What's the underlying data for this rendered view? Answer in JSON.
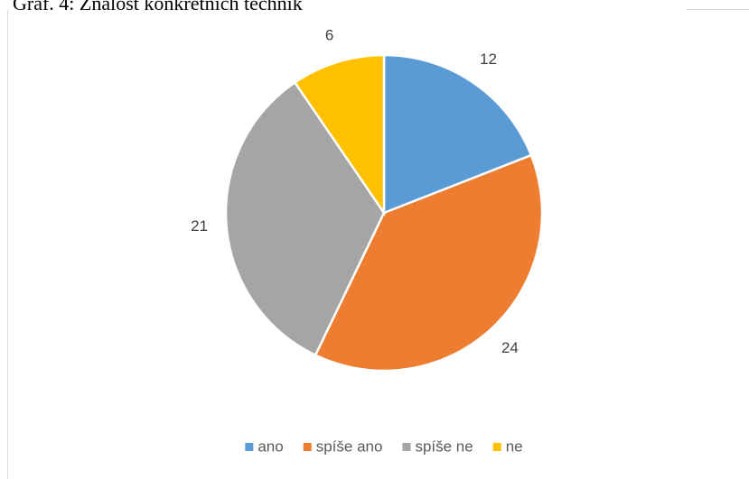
{
  "chart_data": {
    "type": "pie",
    "title": "Graf. 4: Znalost konkrétních technik",
    "categories": [
      "ano",
      "spíše ano",
      "spíše ne",
      "ne"
    ],
    "values": [
      12,
      24,
      21,
      6
    ],
    "colors": [
      "#5b9bd5",
      "#ed7d31",
      "#a5a5a5",
      "#ffc000"
    ],
    "legend": "bottom"
  }
}
